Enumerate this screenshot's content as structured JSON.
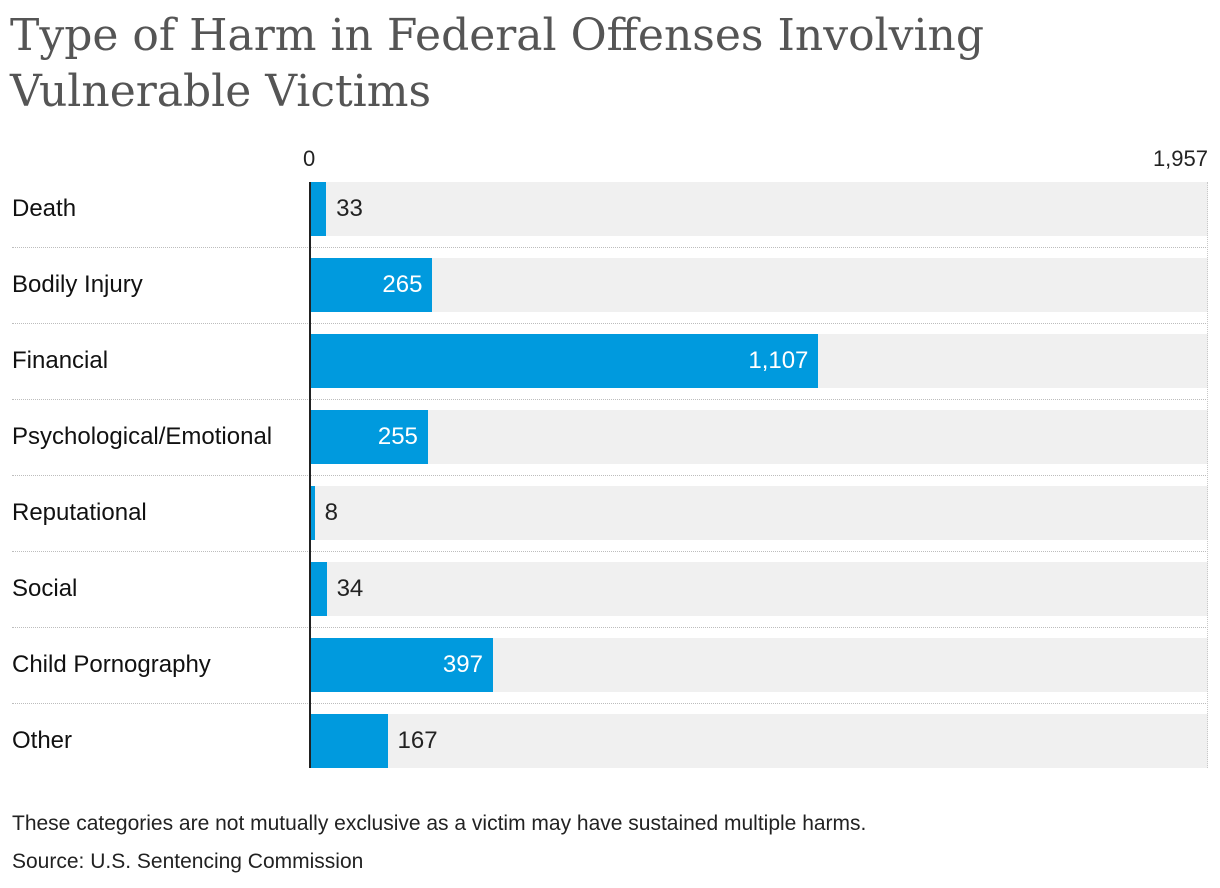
{
  "chart_data": {
    "type": "bar",
    "orientation": "horizontal",
    "title": "Type of Harm in Federal Offenses Involving Vulnerable Victims",
    "categories": [
      "Death",
      "Bodily Injury",
      "Financial",
      "Psychological/Emotional",
      "Reputational",
      "Social",
      "Child Pornography",
      "Other"
    ],
    "values": [
      33,
      265,
      1107,
      255,
      8,
      34,
      397,
      167
    ],
    "value_labels": [
      "33",
      "265",
      "1,107",
      "255",
      "8",
      "34",
      "397",
      "167"
    ],
    "axis_min_label": "0",
    "axis_max_label": "1,957",
    "xlim": [
      0,
      1957
    ],
    "grid": false,
    "legend": "none"
  },
  "colors": {
    "bar": "#009ade",
    "track": "#f0f0f0",
    "title": "#555555"
  },
  "footer": {
    "note": "These categories are not mutually exclusive as a victim may have sustained multiple harms.",
    "source": "Source: U.S. Sentencing Commission"
  }
}
